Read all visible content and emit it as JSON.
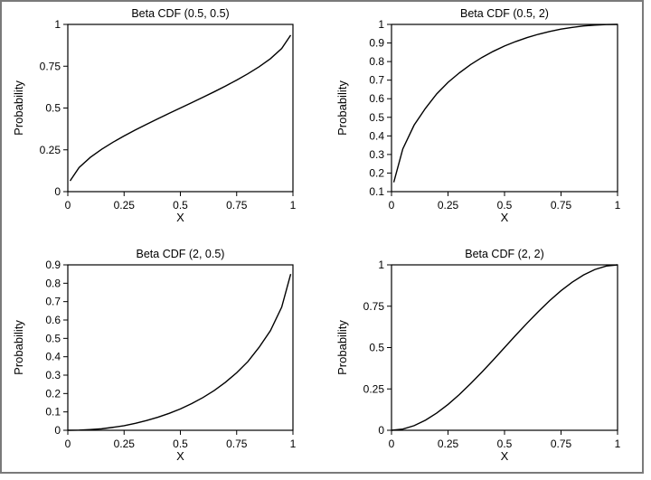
{
  "chart_data": [
    {
      "type": "line",
      "title": "Beta CDF (0.5, 0.5)",
      "xlabel": "X",
      "ylabel": "Probability",
      "xlim": [
        0,
        1
      ],
      "ylim": [
        0,
        1
      ],
      "xticks": [
        "0",
        "0.25",
        "0.5",
        "0.75",
        "1"
      ],
      "yticks": [
        "0",
        "0.25",
        "0.5",
        "0.75",
        "1"
      ],
      "grid": false,
      "series": [
        {
          "x": [
            0.01,
            0.05,
            0.1,
            0.15,
            0.2,
            0.25,
            0.3,
            0.35,
            0.4,
            0.45,
            0.5,
            0.55,
            0.6,
            0.65,
            0.7,
            0.75,
            0.8,
            0.85,
            0.9,
            0.95,
            0.99
          ],
          "y": [
            0.064,
            0.144,
            0.205,
            0.253,
            0.295,
            0.333,
            0.369,
            0.403,
            0.436,
            0.468,
            0.5,
            0.532,
            0.564,
            0.597,
            0.631,
            0.667,
            0.705,
            0.747,
            0.795,
            0.856,
            0.936
          ]
        }
      ]
    },
    {
      "type": "line",
      "title": "Beta CDF (0.5, 2)",
      "xlabel": "X",
      "ylabel": "Probability",
      "xlim": [
        0,
        1
      ],
      "ylim": [
        0.1,
        1
      ],
      "xticks": [
        "0",
        "0.25",
        "0.5",
        "0.75",
        "1"
      ],
      "yticks": [
        "0.1",
        "0.2",
        "0.3",
        "0.4",
        "0.5",
        "0.6",
        "0.7",
        "0.8",
        "0.9",
        "1"
      ],
      "grid": false,
      "series": [
        {
          "x": [
            0.01,
            0.05,
            0.1,
            0.15,
            0.2,
            0.25,
            0.3,
            0.35,
            0.4,
            0.45,
            0.5,
            0.55,
            0.6,
            0.65,
            0.7,
            0.75,
            0.8,
            0.85,
            0.9,
            0.95,
            1.0
          ],
          "y": [
            0.15,
            0.33,
            0.458,
            0.548,
            0.626,
            0.688,
            0.739,
            0.784,
            0.822,
            0.855,
            0.884,
            0.908,
            0.929,
            0.947,
            0.962,
            0.975,
            0.984,
            0.992,
            0.996,
            0.999,
            1.0
          ]
        }
      ]
    },
    {
      "type": "line",
      "title": "Beta CDF (2, 0.5)",
      "xlabel": "X",
      "ylabel": "Probability",
      "xlim": [
        0,
        1
      ],
      "ylim": [
        0,
        0.9
      ],
      "xticks": [
        "0",
        "0.25",
        "0.5",
        "0.75",
        "1"
      ],
      "yticks": [
        "0",
        "0.1",
        "0.2",
        "0.3",
        "0.4",
        "0.5",
        "0.6",
        "0.7",
        "0.8",
        "0.9"
      ],
      "grid": false,
      "series": [
        {
          "x": [
            0.0,
            0.05,
            0.1,
            0.15,
            0.2,
            0.25,
            0.3,
            0.35,
            0.4,
            0.45,
            0.5,
            0.55,
            0.6,
            0.65,
            0.7,
            0.75,
            0.8,
            0.85,
            0.9,
            0.95,
            0.99
          ],
          "y": [
            0.0,
            0.001,
            0.004,
            0.008,
            0.016,
            0.025,
            0.038,
            0.053,
            0.071,
            0.092,
            0.116,
            0.145,
            0.178,
            0.216,
            0.261,
            0.313,
            0.374,
            0.452,
            0.542,
            0.67,
            0.85
          ]
        }
      ]
    },
    {
      "type": "line",
      "title": "Beta CDF (2, 2)",
      "xlabel": "X",
      "ylabel": "Probability",
      "xlim": [
        0,
        1
      ],
      "ylim": [
        0,
        1
      ],
      "xticks": [
        "0",
        "0.25",
        "0.5",
        "0.75",
        "1"
      ],
      "yticks": [
        "0",
        "0.25",
        "0.5",
        "0.75",
        "1"
      ],
      "grid": false,
      "series": [
        {
          "x": [
            0.0,
            0.05,
            0.1,
            0.15,
            0.2,
            0.25,
            0.3,
            0.35,
            0.4,
            0.45,
            0.5,
            0.55,
            0.6,
            0.65,
            0.7,
            0.75,
            0.8,
            0.85,
            0.9,
            0.95,
            1.0
          ],
          "y": [
            0.0,
            0.007,
            0.028,
            0.061,
            0.104,
            0.156,
            0.216,
            0.282,
            0.352,
            0.425,
            0.5,
            0.575,
            0.648,
            0.718,
            0.784,
            0.844,
            0.896,
            0.939,
            0.972,
            0.993,
            1.0
          ]
        }
      ]
    }
  ]
}
